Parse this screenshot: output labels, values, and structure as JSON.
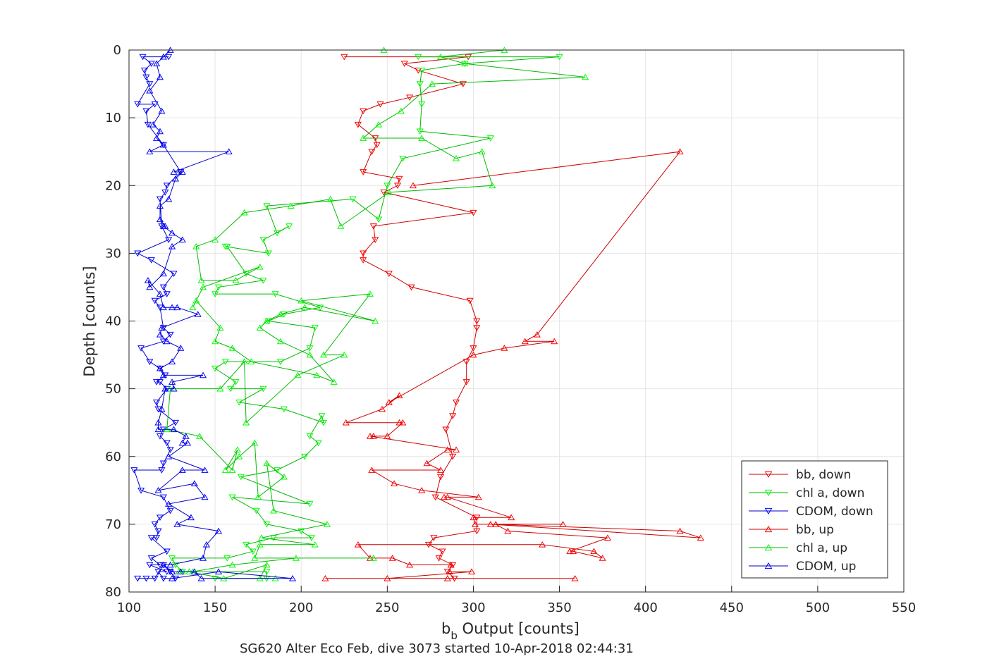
{
  "chart_data": {
    "type": "line",
    "title": "",
    "xlabel_main": "b",
    "xlabel_sub": "b",
    "xlabel_rest": " Output [counts]",
    "ylabel": "Depth [counts]",
    "caption": "SG620 Alter Eco Feb, dive 3073 started 10-Apr-2018 02:44:31",
    "xlim": [
      100,
      550
    ],
    "ylim": [
      0,
      80
    ],
    "y_reversed": true,
    "grid": true,
    "legend_position": "bottom-right",
    "xticks": [
      "100",
      "150",
      "200",
      "250",
      "300",
      "350",
      "400",
      "450",
      "500",
      "550"
    ],
    "yticks": [
      "0",
      "10",
      "20",
      "30",
      "40",
      "50",
      "60",
      "70",
      "80"
    ],
    "colors": {
      "red": "#ff0000",
      "green": "#00ff00",
      "blue": "#0000ff",
      "red_line": "#cc0000",
      "green_line": "#00bb00",
      "blue_line": "#0000cc"
    },
    "series": [
      {
        "name": "bb, down",
        "color": "red",
        "marker": "down",
        "x": [
          225,
          297,
          260,
          268,
          294,
          263,
          246,
          236,
          233,
          243,
          244,
          241,
          236,
          257,
          256,
          248,
          300,
          242,
          243,
          236,
          236,
          251,
          264,
          298,
          302,
          302,
          300,
          296,
          296,
          290,
          288,
          284,
          288,
          281,
          278,
          302,
          302,
          277,
          274,
          282,
          280,
          288,
          285,
          289
        ],
        "y": [
          1,
          1,
          2,
          3,
          5,
          7,
          8,
          9,
          11,
          13,
          14,
          15,
          18,
          19,
          20,
          21,
          24,
          26,
          28,
          30,
          31,
          33,
          35,
          37,
          40,
          41,
          44,
          46,
          49,
          52,
          54,
          56,
          60,
          63,
          66,
          69,
          71,
          72,
          73,
          74,
          75,
          76,
          77,
          78
        ]
      },
      {
        "name": "chl a, down",
        "color": "green",
        "marker": "down",
        "x": [
          268,
          350,
          295,
          270,
          269,
          270,
          269,
          310,
          259,
          250,
          245,
          230,
          180,
          186,
          193,
          178,
          181,
          156,
          157,
          168,
          178,
          152,
          150,
          185,
          211,
          190,
          181,
          208,
          205,
          188,
          156,
          150,
          162,
          159,
          178,
          164,
          190,
          213,
          212,
          205,
          210,
          202,
          186,
          165,
          205,
          160,
          174,
          180,
          200,
          206,
          184,
          168,
          172,
          157,
          125,
          127,
          131,
          180,
          180,
          150
        ],
        "y": [
          1,
          1,
          2,
          3,
          5,
          8,
          12,
          13,
          16,
          20,
          25,
          22,
          23,
          27,
          26,
          28,
          30,
          29,
          29,
          33,
          34,
          35,
          36,
          36,
          38,
          39,
          40,
          41,
          44,
          46,
          46,
          47,
          49,
          50,
          50,
          52,
          53,
          55,
          54,
          57,
          58,
          60,
          62,
          63,
          67,
          66,
          68,
          70,
          71,
          72,
          72,
          73,
          74,
          75,
          75,
          76,
          77,
          77,
          78,
          78
        ],
        "note_unused": ""
      },
      {
        "name": "CDOM, down",
        "color": "blue",
        "marker": "down",
        "x": [
          123,
          108,
          113,
          109,
          110,
          112,
          105,
          115,
          110,
          111,
          120,
          130,
          122,
          121,
          118,
          119,
          123,
          105,
          113,
          126,
          120,
          122,
          115,
          118,
          120,
          124,
          120,
          107,
          112,
          118,
          121,
          116,
          118,
          122,
          116,
          117,
          127,
          120,
          118,
          122,
          124,
          120,
          119,
          103,
          107,
          120,
          124,
          118,
          115,
          117,
          116,
          113,
          122,
          113,
          118,
          112,
          122,
          117,
          120,
          127,
          124,
          120,
          115,
          105,
          110
        ],
        "y": [
          1,
          1,
          2,
          3,
          4,
          5,
          8,
          8,
          9,
          11,
          14,
          18,
          20,
          21,
          22,
          26,
          28,
          30,
          31,
          33,
          35,
          36,
          37,
          38,
          41,
          42,
          43,
          44,
          46,
          47,
          48,
          49,
          49,
          50,
          52,
          53,
          55,
          56,
          57,
          58,
          59,
          61,
          62,
          62,
          65,
          66,
          68,
          69,
          70,
          71,
          72,
          72,
          74,
          75,
          76,
          76,
          77,
          77,
          78,
          78,
          77,
          76,
          78,
          78,
          78
        ],
        "note_unused": ""
      },
      {
        "name": "bb, up",
        "color": "red",
        "marker": "up",
        "x": [
          214,
          359,
          285,
          250,
          299,
          286,
          287,
          263,
          253,
          240,
          233,
          340,
          370,
          375,
          358,
          356,
          378,
          320,
          313,
          420,
          432,
          310,
          352,
          301,
          300,
          322,
          285,
          283,
          303,
          270,
          254,
          241,
          281,
          273,
          285,
          290,
          240,
          242,
          250,
          259,
          257,
          226,
          247,
          257,
          251,
          300,
          318,
          347,
          330,
          337,
          420,
          265
        ],
        "y": [
          78,
          78,
          78,
          78,
          77,
          77,
          76,
          76,
          75,
          75,
          73,
          73,
          74,
          75,
          74,
          74,
          72,
          71,
          70,
          71,
          72,
          70,
          70,
          70,
          69,
          69,
          66,
          66,
          66,
          65,
          64,
          62,
          62,
          61,
          59,
          59,
          57,
          57,
          57,
          55,
          55,
          55,
          53,
          51,
          52,
          45,
          44,
          43,
          43,
          42,
          15,
          20
        ],
        "note_unused": ""
      },
      {
        "name": "chl a, up",
        "color": "green",
        "marker": "up",
        "x": [
          248,
          318,
          281,
          295,
          365,
          276,
          258,
          245,
          236,
          270,
          290,
          305,
          311,
          251,
          223,
          217,
          194,
          167,
          150,
          139,
          142,
          162,
          176,
          143,
          137,
          139,
          153,
          150,
          160,
          171,
          209,
          219,
          205,
          188,
          176,
          180,
          188,
          202,
          243,
          200,
          240,
          213,
          225,
          198,
          168,
          167,
          153,
          124,
          122,
          141,
          160,
          163,
          156,
          164,
          173,
          175,
          190,
          180,
          184,
          215,
          177,
          208,
          176,
          173,
          242,
          197,
          160,
          137,
          131,
          129,
          135,
          155,
          180,
          176,
          185
        ],
        "y": [
          0,
          0,
          1,
          2,
          4,
          5,
          9,
          11,
          13,
          13,
          16,
          15,
          20,
          21,
          26,
          22,
          23,
          24,
          28,
          29,
          34,
          34,
          32,
          35,
          38,
          37,
          41,
          43,
          44,
          46,
          48,
          49,
          45,
          43,
          41,
          40,
          39,
          38,
          40,
          37,
          36,
          45,
          45,
          48,
          55,
          46,
          50,
          50,
          56,
          57,
          62,
          59,
          62,
          60,
          58,
          66,
          63,
          61,
          68,
          70,
          72,
          73,
          73,
          75,
          75,
          75,
          76,
          77,
          77,
          77,
          77,
          78,
          76,
          78,
          78
        ]
      },
      {
        "name": "CDOM, up",
        "color": "blue",
        "marker": "up",
        "x": [
          124,
          120,
          116,
          118,
          112,
          119,
          114,
          118,
          116,
          120,
          112,
          158,
          126,
          131,
          127,
          123,
          118,
          118,
          121,
          120,
          125,
          131,
          125,
          120,
          112,
          111,
          118,
          120,
          125,
          128,
          140,
          119,
          118,
          122,
          130,
          125,
          118,
          120,
          143,
          125,
          126,
          121,
          119,
          117,
          117,
          126,
          133,
          131,
          134,
          123,
          144,
          131,
          117,
          138,
          144,
          123,
          136,
          128,
          152,
          145,
          143,
          124,
          120,
          125,
          130,
          125,
          138,
          142,
          195,
          152,
          125
        ],
        "y": [
          0,
          1,
          2,
          4,
          6,
          9,
          11,
          12,
          13,
          14,
          15,
          15,
          18,
          18,
          19,
          22,
          23,
          25,
          26,
          26,
          27,
          28,
          29,
          33,
          35,
          34,
          36,
          38,
          38,
          38,
          39,
          41,
          42,
          43,
          44,
          46,
          47,
          48,
          48,
          49,
          50,
          50,
          53,
          55,
          56,
          56,
          57,
          58,
          58,
          60,
          62,
          62,
          65,
          64,
          66,
          67,
          69,
          70,
          71,
          73,
          75,
          76,
          76,
          77,
          77,
          77,
          77,
          78,
          78,
          77,
          78
        ]
      }
    ],
    "legend_entries": [
      "bb, down",
      "chl a, down",
      "CDOM, down",
      "bb, up",
      "chl a, up",
      "CDOM, up"
    ]
  }
}
